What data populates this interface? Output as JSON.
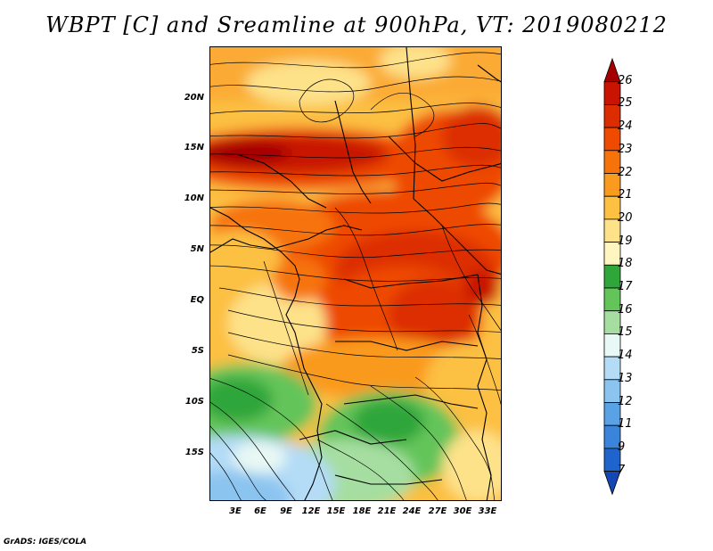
{
  "title": "WBPT [C] and Sreamline at 900hPa, VT: 2019080212",
  "credit": "GrADS: IGES/COLA",
  "map": {
    "lat_labels": [
      "20N",
      "15N",
      "10N",
      "5N",
      "EQ",
      "5S",
      "10S",
      "15S"
    ],
    "lon_labels": [
      "3E",
      "6E",
      "9E",
      "12E",
      "15E",
      "18E",
      "21E",
      "24E",
      "27E",
      "30E",
      "33E"
    ]
  },
  "colorbar": {
    "labels": [
      "26",
      "25",
      "24",
      "23",
      "22",
      "21",
      "20",
      "19",
      "18",
      "17",
      "16",
      "15",
      "14",
      "13",
      "12",
      "11",
      "9",
      "7"
    ],
    "colors": [
      "#a50000",
      "#c81400",
      "#dc2d00",
      "#ee4a00",
      "#f6730c",
      "#fa9a1e",
      "#fcc042",
      "#fde28a",
      "#fff5c0",
      "#2fa63a",
      "#63c45a",
      "#a5dea0",
      "#e8f8f4",
      "#b4dcf6",
      "#8cc4f0",
      "#5aa2e6",
      "#3a84dc",
      "#1e64cc",
      "#1446b4"
    ]
  }
}
